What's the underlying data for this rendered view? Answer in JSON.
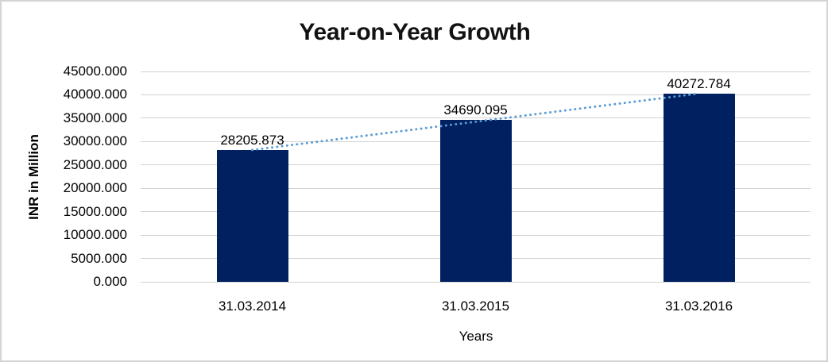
{
  "chart_data": {
    "type": "bar",
    "title": "Year-on-Year Growth",
    "xlabel": "Years",
    "ylabel": "INR in Million",
    "categories": [
      "31.03.2014",
      "31.03.2015",
      "31.03.2016"
    ],
    "values": [
      28205.873,
      34690.095,
      40272.784
    ],
    "data_labels": [
      "28205.873",
      "34690.095",
      "40272.784"
    ],
    "ylim": [
      0,
      45000
    ],
    "y_tick_step": 5000,
    "y_tick_labels": [
      "0.000",
      "5000.000",
      "10000.000",
      "15000.000",
      "20000.000",
      "25000.000",
      "30000.000",
      "35000.000",
      "40000.000",
      "45000.000"
    ],
    "grid": true,
    "legend": false,
    "bar_color": "#002060",
    "trendline": {
      "type": "linear",
      "style": "dotted",
      "color": "#5b9bd5"
    }
  }
}
